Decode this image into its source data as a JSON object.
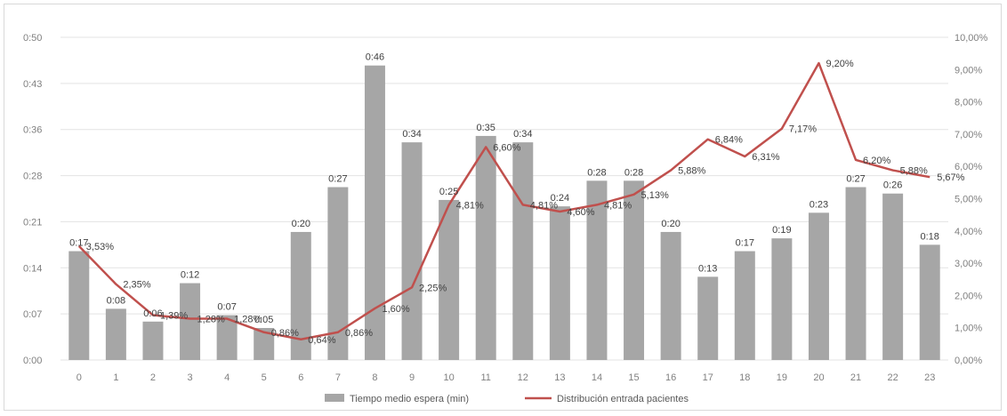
{
  "chart_data": {
    "type": "bar+line",
    "title": "",
    "x": [
      "0",
      "1",
      "2",
      "3",
      "4",
      "5",
      "6",
      "7",
      "8",
      "9",
      "10",
      "11",
      "12",
      "13",
      "14",
      "15",
      "16",
      "17",
      "18",
      "19",
      "20",
      "21",
      "22",
      "23"
    ],
    "left_axis": {
      "ticks": [
        "0:00",
        "0:07",
        "0:14",
        "0:21",
        "0:28",
        "0:36",
        "0:43",
        "0:50"
      ],
      "tick_values_min": [
        0,
        7.2,
        14.4,
        21.6,
        28.8,
        36,
        43.2,
        50.4
      ],
      "ylim_min": [
        0,
        50.4
      ]
    },
    "right_axis": {
      "ticks": [
        "0,00%",
        "1,00%",
        "2,00%",
        "3,00%",
        "4,00%",
        "5,00%",
        "6,00%",
        "7,00%",
        "8,00%",
        "9,00%",
        "10,00%"
      ],
      "ylim_pct": [
        0,
        10
      ]
    },
    "series": [
      {
        "name": "Tiempo medio espera (min)",
        "type": "bar",
        "axis": "left",
        "color": "#a6a6a6",
        "labels": [
          "0:17",
          "0:08",
          "0:06",
          "0:12",
          "0:07",
          "0:05",
          "0:20",
          "0:27",
          "0:46",
          "0:34",
          "0:25",
          "0:35",
          "0:34",
          "0:24",
          "0:28",
          "0:28",
          "0:20",
          "0:13",
          "0:17",
          "0:19",
          "0:23",
          "0:27",
          "0:26",
          "0:18"
        ],
        "values_min": [
          17,
          8,
          6,
          12,
          7,
          5,
          20,
          27,
          46,
          34,
          25,
          35,
          34,
          24,
          28,
          28,
          20,
          13,
          17,
          19,
          23,
          27,
          26,
          18
        ]
      },
      {
        "name": "Distribución entrada pacientes",
        "type": "line",
        "axis": "right",
        "color": "#c0504d",
        "labels": [
          "3,53%",
          "2,35%",
          "1,39%",
          "1,28%",
          "1,28%",
          "0,86%",
          "0,64%",
          "0,86%",
          "1,60%",
          "2,25%",
          "4,81%",
          "6,60%",
          "4,81%",
          "4,60%",
          "4,81%",
          "5,13%",
          "5,88%",
          "6,84%",
          "6,31%",
          "7,17%",
          "9,20%",
          "6,20%",
          "5,88%",
          "5,67%"
        ],
        "values_pct": [
          3.53,
          2.35,
          1.39,
          1.28,
          1.28,
          0.86,
          0.64,
          0.86,
          1.6,
          2.25,
          4.81,
          6.6,
          4.81,
          4.6,
          4.81,
          5.13,
          5.88,
          6.84,
          6.31,
          7.17,
          9.2,
          6.2,
          5.88,
          5.67
        ]
      }
    ],
    "legend_position": "bottom",
    "grid": true
  }
}
